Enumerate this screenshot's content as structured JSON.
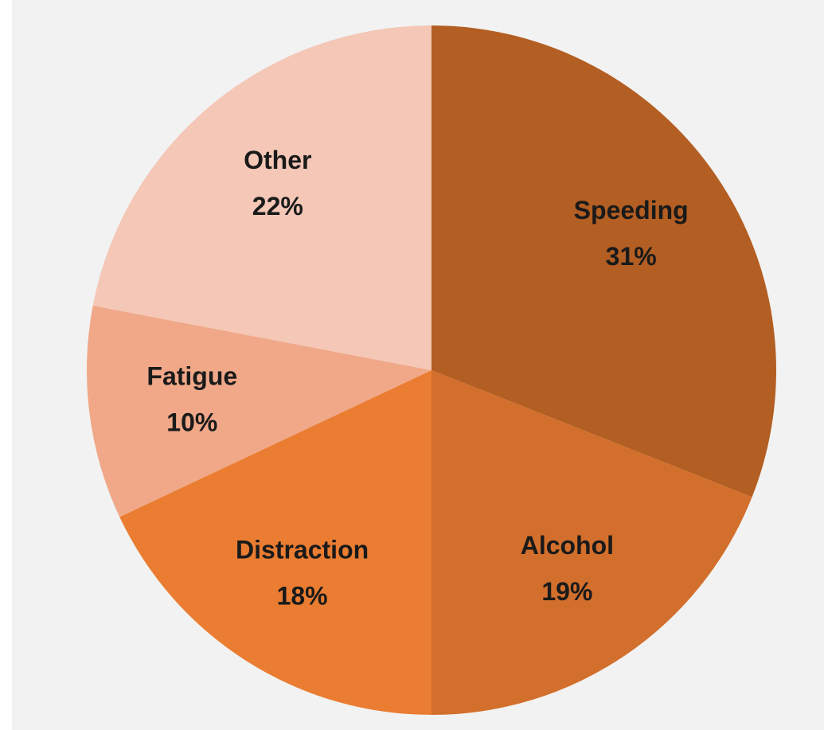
{
  "chart_data": {
    "type": "pie",
    "categories": [
      "Speeding",
      "Alcohol",
      "Distraction",
      "Fatigue",
      "Other"
    ],
    "values": [
      31,
      19,
      18,
      10,
      22
    ],
    "value_labels": [
      "31%",
      "19%",
      "18%",
      "10%",
      "22%"
    ],
    "colors": [
      "#b35e22",
      "#d36f2c",
      "#ea7d32",
      "#f0a888",
      "#f4c7b6"
    ]
  }
}
